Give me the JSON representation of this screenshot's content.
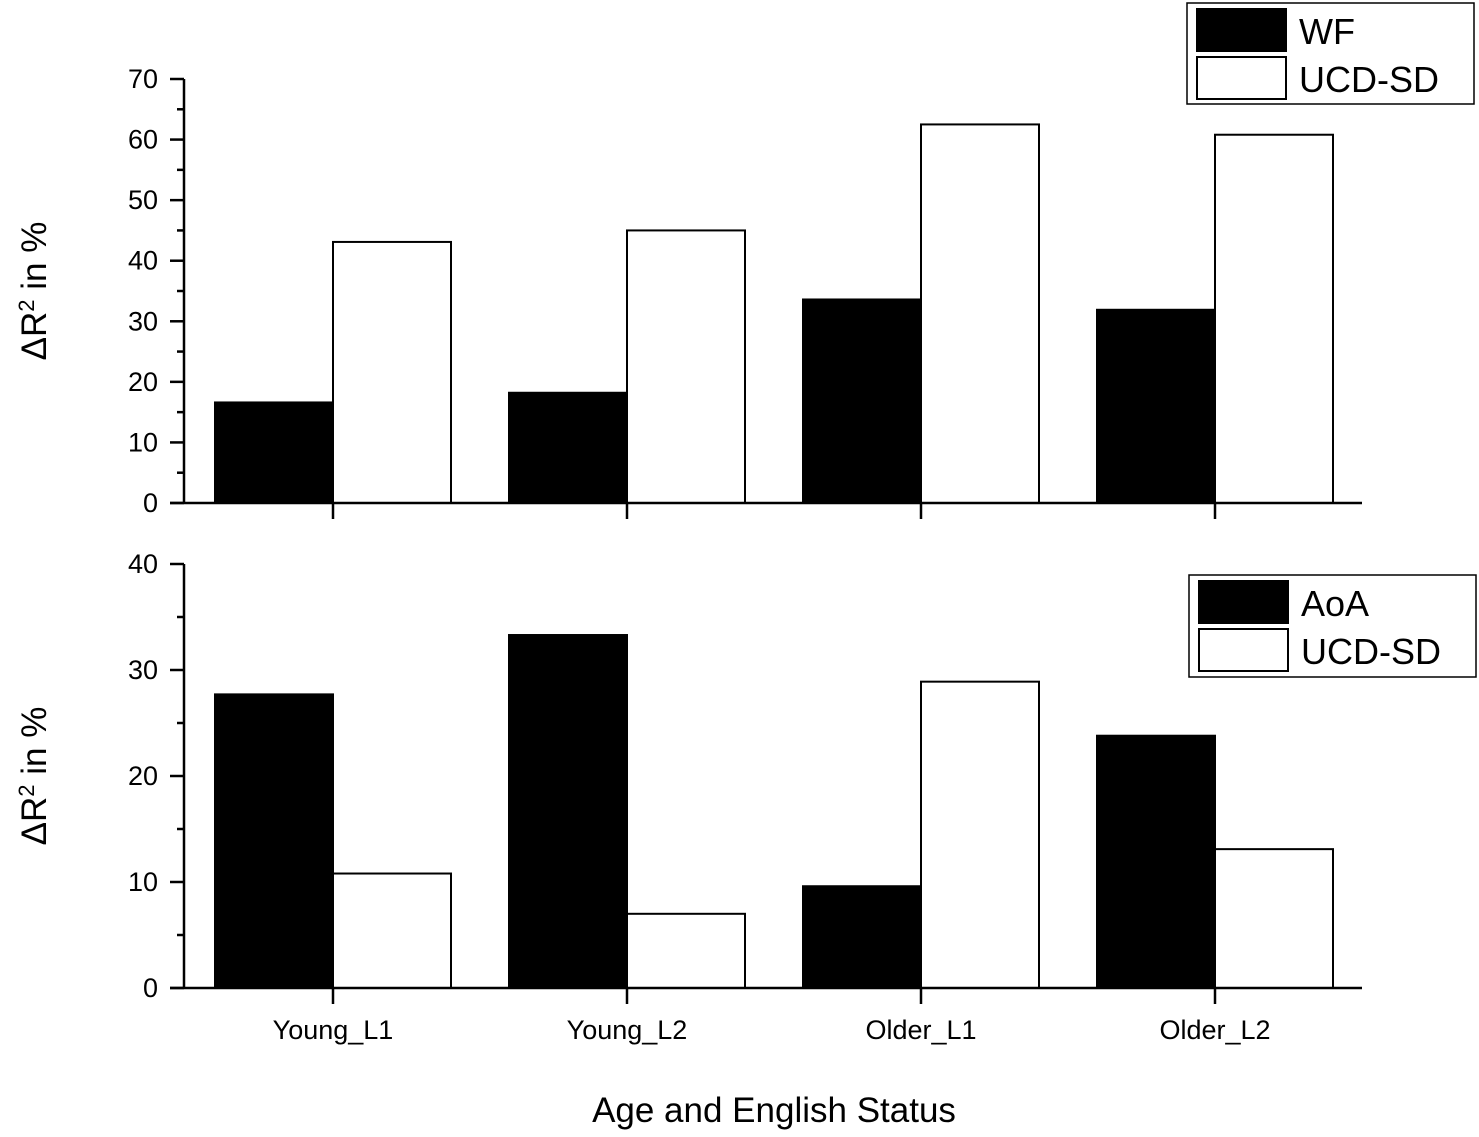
{
  "xlabel": "Age and English Status",
  "chart_data": [
    {
      "type": "bar",
      "panel": "top",
      "categories": [
        "Young_L1",
        "Young_L2",
        "Older_L1",
        "Older_L2"
      ],
      "series": [
        {
          "name": "WF",
          "color": "#000000",
          "values": [
            16.6,
            18.2,
            33.6,
            31.9
          ]
        },
        {
          "name": "UCD-SD",
          "color": "#ffffff",
          "values": [
            43.1,
            45.0,
            62.5,
            60.8
          ]
        }
      ],
      "ylabel_base": "ΔR",
      "ylabel_sup": "2",
      "ylabel_rest": " in %",
      "ylim": [
        0,
        70
      ],
      "yticks": [
        0,
        10,
        20,
        30,
        40,
        50,
        60,
        70
      ],
      "legend_position": "top-right",
      "grid": false
    },
    {
      "type": "bar",
      "panel": "bottom",
      "categories": [
        "Young_L1",
        "Young_L2",
        "Older_L1",
        "Older_L2"
      ],
      "series": [
        {
          "name": "AoA",
          "color": "#000000",
          "values": [
            27.7,
            33.3,
            9.6,
            23.8
          ]
        },
        {
          "name": "UCD-SD",
          "color": "#ffffff",
          "values": [
            10.8,
            7.0,
            28.9,
            13.1
          ]
        }
      ],
      "ylabel_base": "ΔR",
      "ylabel_sup": "2",
      "ylabel_rest": " in %",
      "ylim": [
        0,
        40
      ],
      "yticks": [
        0,
        10,
        20,
        30,
        40
      ],
      "legend_position": "top-right",
      "grid": false
    }
  ]
}
